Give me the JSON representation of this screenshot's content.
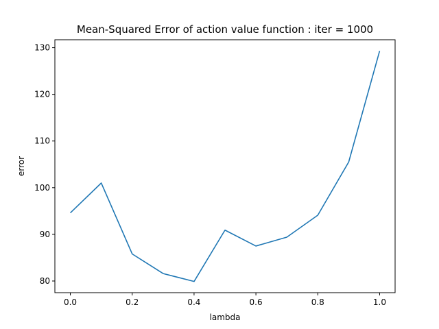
{
  "chart_data": {
    "type": "line",
    "title": "Mean-Squared Error of action value function : iter = 1000",
    "xlabel": "lambda",
    "ylabel": "error",
    "xlim": [
      -0.05,
      1.05
    ],
    "ylim": [
      77.5,
      131.7
    ],
    "xticks": [
      0.0,
      0.2,
      0.4,
      0.6,
      0.8,
      1.0
    ],
    "xtick_labels": [
      "0.0",
      "0.2",
      "0.4",
      "0.6",
      "0.8",
      "1.0"
    ],
    "yticks": [
      80,
      90,
      100,
      110,
      120,
      130
    ],
    "ytick_labels": [
      "80",
      "90",
      "100",
      "110",
      "120",
      "130"
    ],
    "grid": false,
    "legend": "none",
    "series": [
      {
        "color": "#1f77b4",
        "x": [
          0.0,
          0.1,
          0.2,
          0.3,
          0.4,
          0.5,
          0.6,
          0.7,
          0.8,
          0.9,
          1.0
        ],
        "y": [
          94.6,
          101.0,
          85.8,
          81.6,
          79.9,
          90.9,
          87.5,
          89.4,
          94.1,
          105.5,
          129.3
        ]
      }
    ]
  }
}
